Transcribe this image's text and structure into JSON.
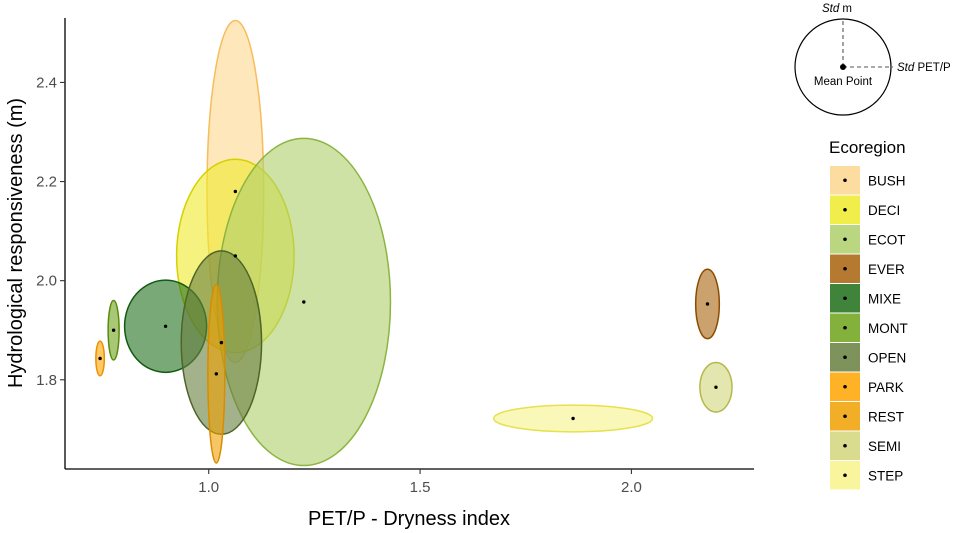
{
  "chart_data": {
    "type": "scatter",
    "xlabel": "PET/P - Dryness index",
    "ylabel": "Hydrological responsiveness (m)",
    "xlim": [
      0.66,
      2.29
    ],
    "ylim": [
      1.62,
      2.53
    ],
    "x_ticks": [
      1.0,
      1.5,
      2.0
    ],
    "x_tick_labels": [
      "1.0",
      "1.5",
      "2.0"
    ],
    "y_ticks": [
      1.8,
      2.0,
      2.2,
      2.4
    ],
    "y_tick_labels": [
      "1.8",
      "2.0",
      "2.2",
      "2.4"
    ],
    "grid": false,
    "legend": {
      "title": "Ecoregion",
      "position": "right"
    },
    "key": {
      "std_m_italic": "Std",
      "std_m_rest": " m",
      "std_x_italic": "Std",
      "std_x_rest": " PET/P",
      "center_label": "Mean Point"
    },
    "series": [
      {
        "name": "BUSH",
        "color": "#FDD78E",
        "stroke": "#F6BD5C",
        "mean_x": 1.063,
        "mean_y": 2.18,
        "std_x": 0.067,
        "std_y": 0.345
      },
      {
        "name": "DECI",
        "color": "#EEEA2A",
        "stroke": "#D5D100",
        "mean_x": 1.063,
        "mean_y": 2.05,
        "std_x": 0.139,
        "std_y": 0.195
      },
      {
        "name": "ECOT",
        "color": "#AFCF6B",
        "stroke": "#8CB440",
        "mean_x": 1.225,
        "mean_y": 1.957,
        "std_x": 0.205,
        "std_y": 0.33
      },
      {
        "name": "EVER",
        "color": "#A8630C",
        "stroke": "#8A4C00",
        "mean_x": 2.18,
        "mean_y": 1.953,
        "std_x": 0.028,
        "std_y": 0.07
      },
      {
        "name": "MIXE",
        "color": "#1F6F1A",
        "stroke": "#125A0F",
        "mean_x": 0.898,
        "mean_y": 1.908,
        "std_x": 0.097,
        "std_y": 0.093
      },
      {
        "name": "MONT",
        "color": "#6FA31A",
        "stroke": "#5A8A0C",
        "mean_x": 0.775,
        "mean_y": 1.9,
        "std_x": 0.013,
        "std_y": 0.06
      },
      {
        "name": "OPEN",
        "color": "#677F3F",
        "stroke": "#4E6528",
        "mean_x": 1.03,
        "mean_y": 1.875,
        "std_x": 0.095,
        "std_y": 0.185
      },
      {
        "name": "PARK",
        "color": "#FFA500",
        "stroke": "#E89200",
        "mean_x": 0.743,
        "mean_y": 1.843,
        "std_x": 0.01,
        "std_y": 0.035
      },
      {
        "name": "REST",
        "color": "#F0A000",
        "stroke": "#D98C00",
        "mean_x": 1.018,
        "mean_y": 1.812,
        "std_x": 0.02,
        "std_y": 0.18
      },
      {
        "name": "SEMI",
        "color": "#D2D57A",
        "stroke": "#B5B84C",
        "mean_x": 2.2,
        "mean_y": 1.785,
        "std_x": 0.038,
        "std_y": 0.05
      },
      {
        "name": "STEP",
        "color": "#F7F38B",
        "stroke": "#E6E150",
        "mean_x": 1.862,
        "mean_y": 1.722,
        "std_x": 0.188,
        "std_y": 0.027
      }
    ]
  }
}
